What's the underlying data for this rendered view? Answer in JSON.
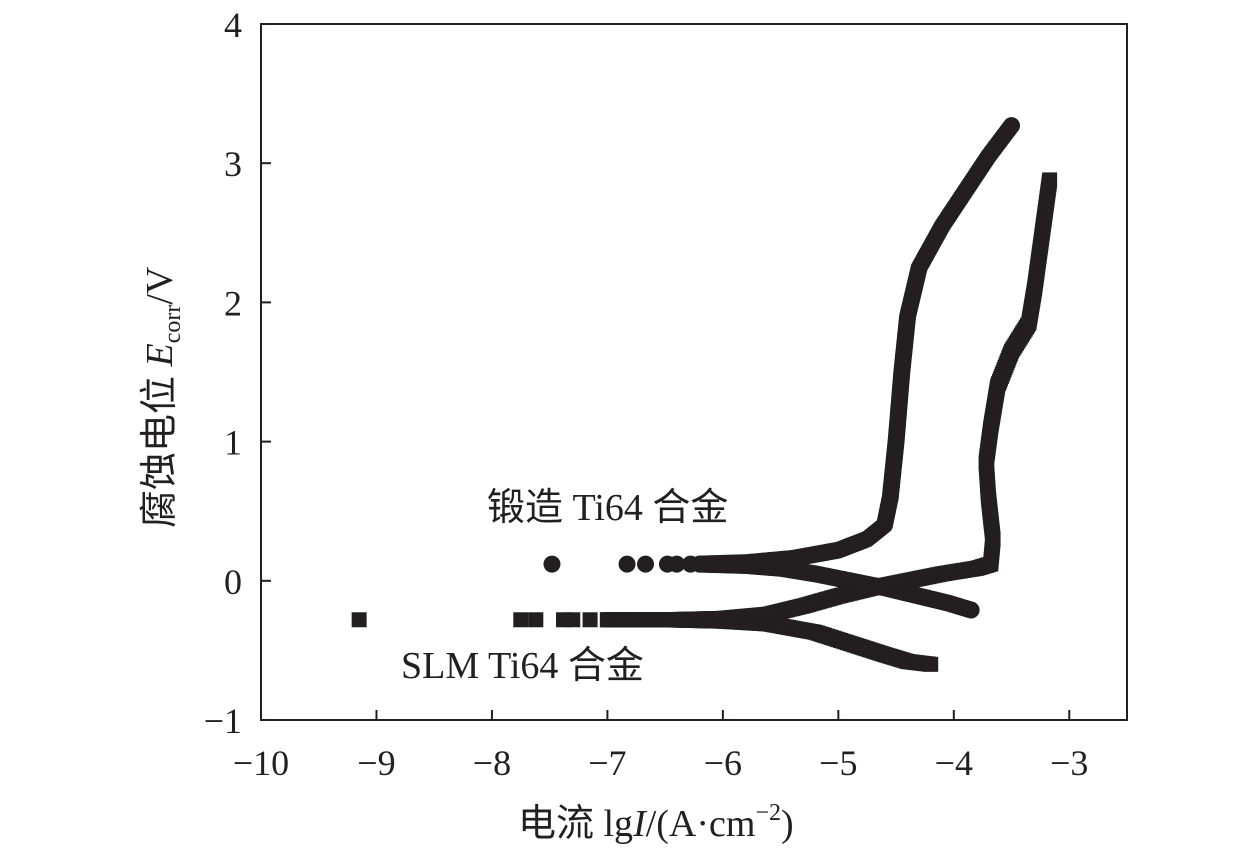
{
  "chart_data": {
    "type": "scatter",
    "title": "",
    "xlabel": {
      "prefix": "电流 lg",
      "var": "I",
      "unit_open": "/(A·cm",
      "exp": "−2",
      "unit_close": ")"
    },
    "ylabel": {
      "prefix": "腐蚀电位 ",
      "var": "E",
      "sub": "corr",
      "unit": "/V"
    },
    "xlim": [
      -10,
      -2.5
    ],
    "ylim": [
      -1,
      4
    ],
    "x_ticks": [
      -10,
      -9,
      -8,
      -7,
      -6,
      -5,
      -4,
      -3
    ],
    "x_tick_labels": [
      "−10",
      "−9",
      "−8",
      "−7",
      "−6",
      "−5",
      "−4",
      "−3"
    ],
    "y_ticks": [
      -1,
      0,
      1,
      2,
      3,
      4
    ],
    "y_tick_labels": [
      "−1",
      "0",
      "1",
      "2",
      "3",
      "4"
    ],
    "series": [
      {
        "name": "锻造 Ti64 合金",
        "marker": "circle",
        "isolated_points": [
          [
            -7.48,
            0.12
          ],
          [
            -6.83,
            0.12
          ],
          [
            -6.67,
            0.12
          ],
          [
            -6.48,
            0.12
          ],
          [
            -6.4,
            0.12
          ],
          [
            -6.28,
            0.12
          ],
          [
            -6.18,
            0.12
          ]
        ],
        "cathodic_branch": [
          [
            -6.2,
            0.12
          ],
          [
            -5.8,
            0.11
          ],
          [
            -5.5,
            0.09
          ],
          [
            -5.2,
            0.05
          ],
          [
            -4.9,
            0.0
          ],
          [
            -4.6,
            -0.05
          ],
          [
            -4.3,
            -0.11
          ],
          [
            -4.05,
            -0.16
          ],
          [
            -3.85,
            -0.21
          ]
        ],
        "anodic_branch": [
          [
            -6.2,
            0.12
          ],
          [
            -5.8,
            0.13
          ],
          [
            -5.4,
            0.16
          ],
          [
            -5.0,
            0.22
          ],
          [
            -4.75,
            0.3
          ],
          [
            -4.6,
            0.4
          ],
          [
            -4.55,
            0.6
          ],
          [
            -4.5,
            1.0
          ],
          [
            -4.45,
            1.5
          ],
          [
            -4.4,
            1.9
          ],
          [
            -4.3,
            2.25
          ],
          [
            -4.1,
            2.55
          ],
          [
            -3.9,
            2.8
          ],
          [
            -3.7,
            3.05
          ],
          [
            -3.5,
            3.27
          ]
        ]
      },
      {
        "name": "SLM Ti64 合金",
        "marker": "square",
        "isolated_points": [
          [
            -9.15,
            -0.28
          ],
          [
            -7.75,
            -0.28
          ],
          [
            -7.62,
            -0.28
          ],
          [
            -7.38,
            -0.28
          ],
          [
            -7.3,
            -0.28
          ],
          [
            -7.15,
            -0.28
          ]
        ],
        "cathodic_branch": [
          [
            -7.0,
            -0.28
          ],
          [
            -6.5,
            -0.28
          ],
          [
            -6.0,
            -0.29
          ],
          [
            -5.6,
            -0.31
          ],
          [
            -5.2,
            -0.37
          ],
          [
            -4.9,
            -0.45
          ],
          [
            -4.6,
            -0.53
          ],
          [
            -4.4,
            -0.58
          ],
          [
            -4.2,
            -0.6
          ]
        ],
        "anodic_branch": [
          [
            -7.0,
            -0.28
          ],
          [
            -6.5,
            -0.28
          ],
          [
            -6.0,
            -0.27
          ],
          [
            -5.6,
            -0.24
          ],
          [
            -5.3,
            -0.18
          ],
          [
            -5.0,
            -0.11
          ],
          [
            -4.7,
            -0.05
          ],
          [
            -4.4,
            0.0
          ],
          [
            -4.1,
            0.05
          ],
          [
            -3.8,
            0.09
          ],
          [
            -3.68,
            0.12
          ],
          [
            -3.66,
            0.3
          ],
          [
            -3.7,
            0.6
          ],
          [
            -3.72,
            0.85
          ],
          [
            -3.68,
            1.1
          ],
          [
            -3.62,
            1.4
          ],
          [
            -3.5,
            1.65
          ],
          [
            -3.35,
            1.85
          ],
          [
            -3.3,
            2.1
          ],
          [
            -3.25,
            2.4
          ],
          [
            -3.2,
            2.7
          ],
          [
            -3.17,
            2.88
          ]
        ]
      }
    ]
  }
}
